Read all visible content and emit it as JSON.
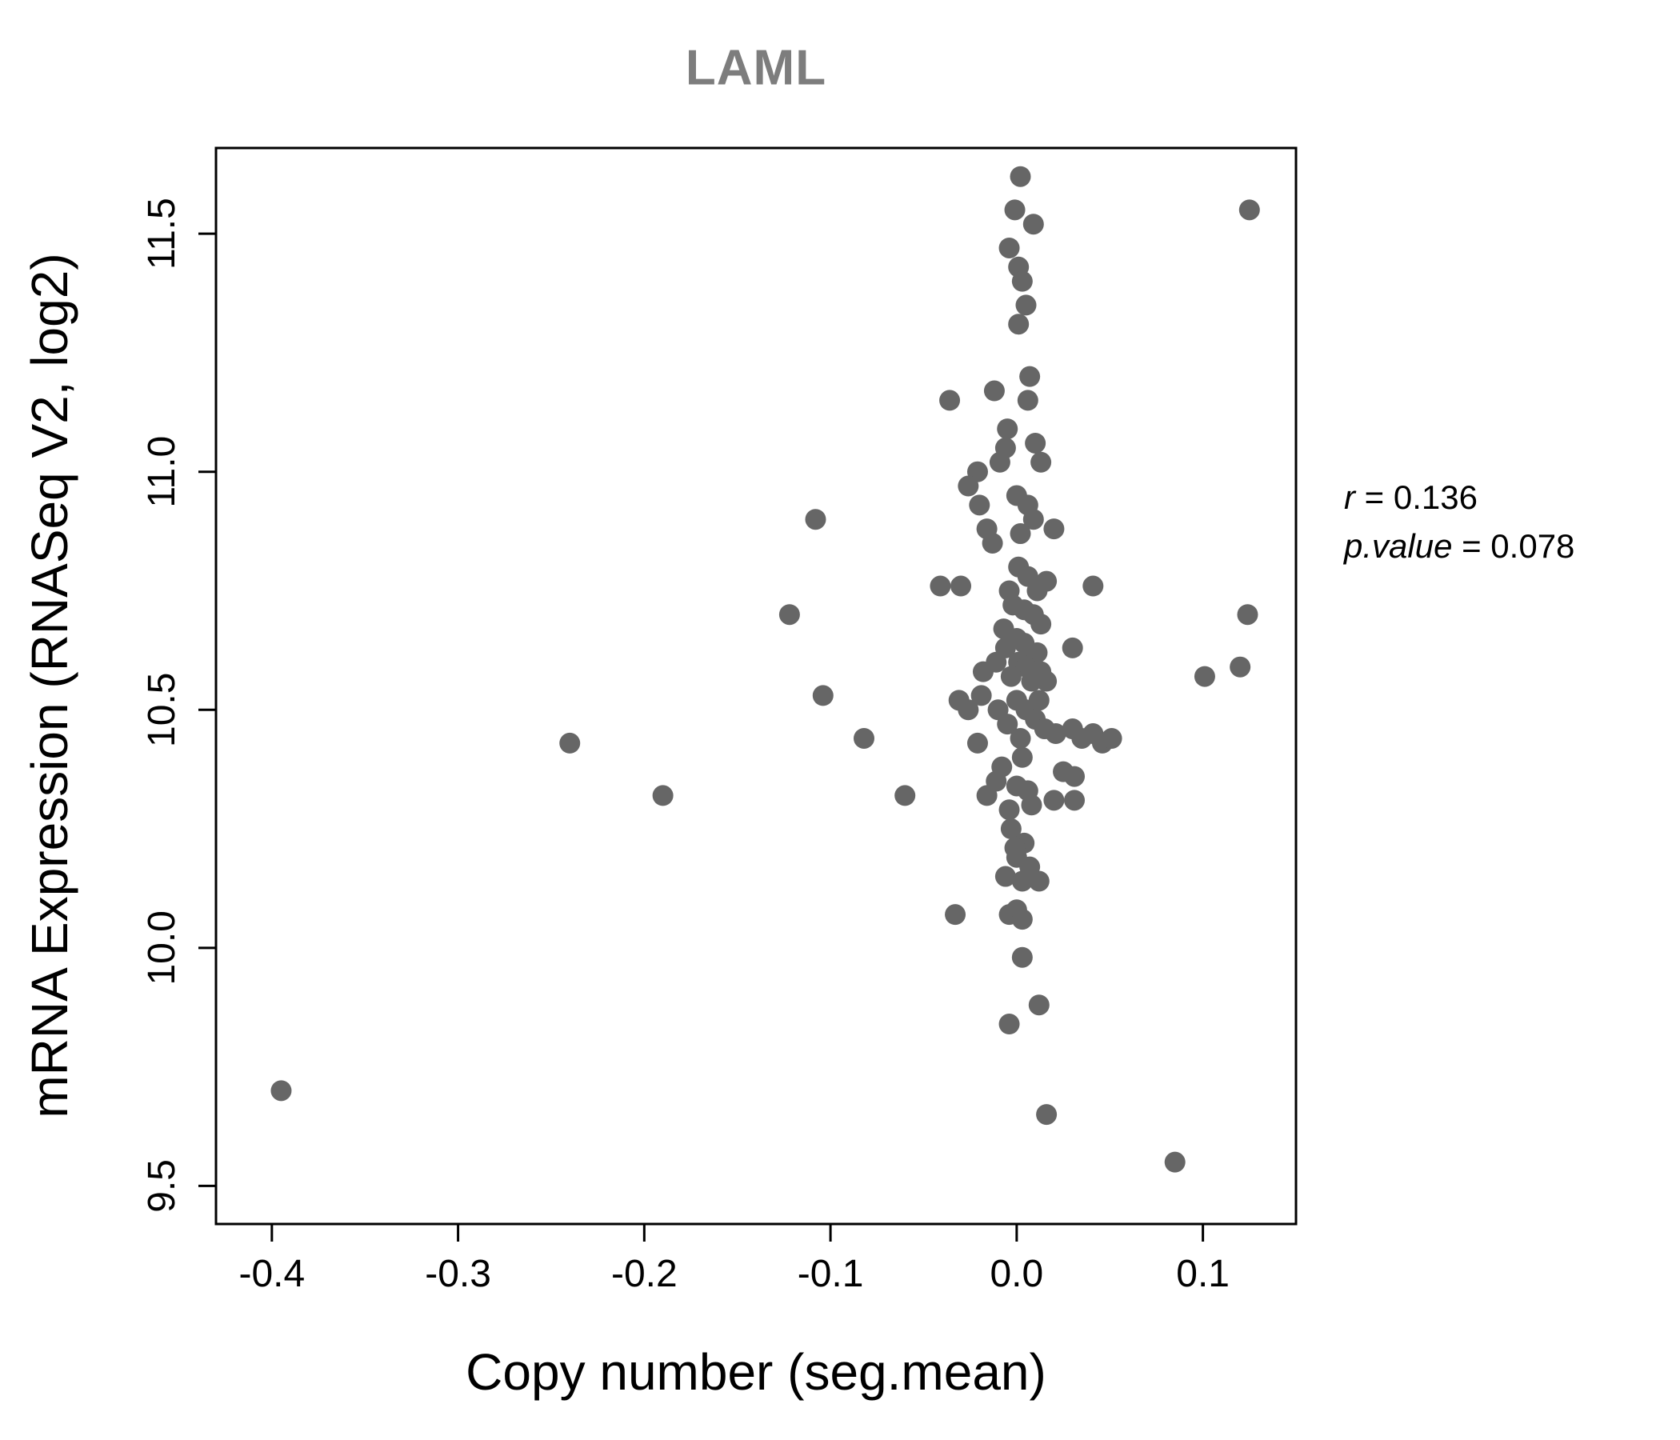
{
  "title": "LAML",
  "annotation": {
    "line1_var": "r",
    "line1_rest": " = 0.136",
    "line2_var": "p.value",
    "line2_rest": " = 0.078"
  },
  "chart_data": {
    "type": "scatter",
    "title": "LAML",
    "xlabel": "Copy number (seg.mean)",
    "ylabel": "mRNA Expression (RNASeq V2, log2)",
    "xlim": [
      -0.43,
      0.15
    ],
    "ylim": [
      9.42,
      11.68
    ],
    "x_ticks": [
      -0.4,
      -0.3,
      -0.2,
      -0.1,
      0.0,
      0.1
    ],
    "x_tick_labels": [
      "-0.4",
      "-0.3",
      "-0.2",
      "-0.1",
      "0.0",
      "0.1"
    ],
    "y_ticks": [
      9.5,
      10.0,
      10.5,
      11.0,
      11.5
    ],
    "y_tick_labels": [
      "9.5",
      "10.0",
      "10.5",
      "11.0",
      "11.5"
    ],
    "legend": "none",
    "grid": false,
    "point_color": "#666666",
    "point_radius": 13,
    "r": 0.136,
    "p_value": 0.078,
    "points": [
      [
        -0.395,
        9.7
      ],
      [
        -0.24,
        10.43
      ],
      [
        -0.19,
        10.32
      ],
      [
        -0.122,
        10.7
      ],
      [
        -0.108,
        10.9
      ],
      [
        -0.104,
        10.53
      ],
      [
        -0.082,
        10.44
      ],
      [
        -0.06,
        10.32
      ],
      [
        0.085,
        9.55
      ],
      [
        0.125,
        11.55
      ],
      [
        0.124,
        10.7
      ],
      [
        0.12,
        10.59
      ],
      [
        0.101,
        10.57
      ],
      [
        0.016,
        9.65
      ],
      [
        0.002,
        11.62
      ],
      [
        -0.001,
        11.55
      ],
      [
        0.009,
        11.52
      ],
      [
        -0.004,
        11.47
      ],
      [
        0.001,
        11.43
      ],
      [
        0.003,
        11.4
      ],
      [
        0.005,
        11.35
      ],
      [
        0.001,
        11.31
      ],
      [
        0.007,
        11.2
      ],
      [
        -0.012,
        11.17
      ],
      [
        -0.036,
        11.15
      ],
      [
        0.006,
        11.15
      ],
      [
        -0.005,
        11.09
      ],
      [
        -0.006,
        11.05
      ],
      [
        0.01,
        11.06
      ],
      [
        -0.009,
        11.02
      ],
      [
        -0.021,
        11.0
      ],
      [
        0.013,
        11.02
      ],
      [
        -0.026,
        10.97
      ],
      [
        -0.02,
        10.93
      ],
      [
        0.0,
        10.95
      ],
      [
        0.006,
        10.93
      ],
      [
        0.009,
        10.9
      ],
      [
        -0.016,
        10.88
      ],
      [
        0.002,
        10.87
      ],
      [
        -0.013,
        10.85
      ],
      [
        0.02,
        10.88
      ],
      [
        -0.041,
        10.76
      ],
      [
        -0.03,
        10.76
      ],
      [
        0.001,
        10.8
      ],
      [
        0.006,
        10.78
      ],
      [
        -0.004,
        10.75
      ],
      [
        0.011,
        10.75
      ],
      [
        0.016,
        10.77
      ],
      [
        0.041,
        10.76
      ],
      [
        -0.002,
        10.72
      ],
      [
        0.009,
        10.7
      ],
      [
        0.013,
        10.68
      ],
      [
        -0.007,
        10.67
      ],
      [
        0.004,
        10.71
      ],
      [
        0.0,
        10.65
      ],
      [
        0.004,
        10.64
      ],
      [
        -0.006,
        10.63
      ],
      [
        0.007,
        10.62
      ],
      [
        0.011,
        10.62
      ],
      [
        -0.011,
        10.6
      ],
      [
        0.001,
        10.6
      ],
      [
        0.005,
        10.59
      ],
      [
        0.013,
        10.58
      ],
      [
        0.03,
        10.63
      ],
      [
        -0.003,
        10.57
      ],
      [
        0.008,
        10.56
      ],
      [
        0.016,
        10.56
      ],
      [
        -0.018,
        10.58
      ],
      [
        -0.031,
        10.52
      ],
      [
        -0.026,
        10.5
      ],
      [
        -0.019,
        10.53
      ],
      [
        -0.01,
        10.5
      ],
      [
        0.0,
        10.52
      ],
      [
        0.005,
        10.5
      ],
      [
        0.01,
        10.48
      ],
      [
        0.015,
        10.46
      ],
      [
        0.021,
        10.45
      ],
      [
        0.03,
        10.46
      ],
      [
        0.035,
        10.44
      ],
      [
        0.041,
        10.45
      ],
      [
        0.046,
        10.43
      ],
      [
        0.051,
        10.44
      ],
      [
        -0.005,
        10.47
      ],
      [
        0.002,
        10.44
      ],
      [
        0.012,
        10.52
      ],
      [
        -0.021,
        10.43
      ],
      [
        0.025,
        10.37
      ],
      [
        0.031,
        10.36
      ],
      [
        -0.011,
        10.35
      ],
      [
        0.0,
        10.34
      ],
      [
        0.006,
        10.33
      ],
      [
        -0.016,
        10.32
      ],
      [
        0.02,
        10.31
      ],
      [
        0.031,
        10.31
      ],
      [
        0.008,
        10.3
      ],
      [
        -0.004,
        10.29
      ],
      [
        -0.008,
        10.38
      ],
      [
        0.003,
        10.4
      ],
      [
        -0.003,
        10.25
      ],
      [
        0.004,
        10.22
      ],
      [
        0.0,
        10.19
      ],
      [
        0.007,
        10.17
      ],
      [
        -0.006,
        10.15
      ],
      [
        0.003,
        10.14
      ],
      [
        0.012,
        10.14
      ],
      [
        -0.001,
        10.21
      ],
      [
        -0.033,
        10.07
      ],
      [
        0.0,
        10.08
      ],
      [
        -0.004,
        10.07
      ],
      [
        0.003,
        10.06
      ],
      [
        0.003,
        9.98
      ],
      [
        -0.004,
        9.84
      ],
      [
        0.012,
        9.88
      ]
    ]
  }
}
